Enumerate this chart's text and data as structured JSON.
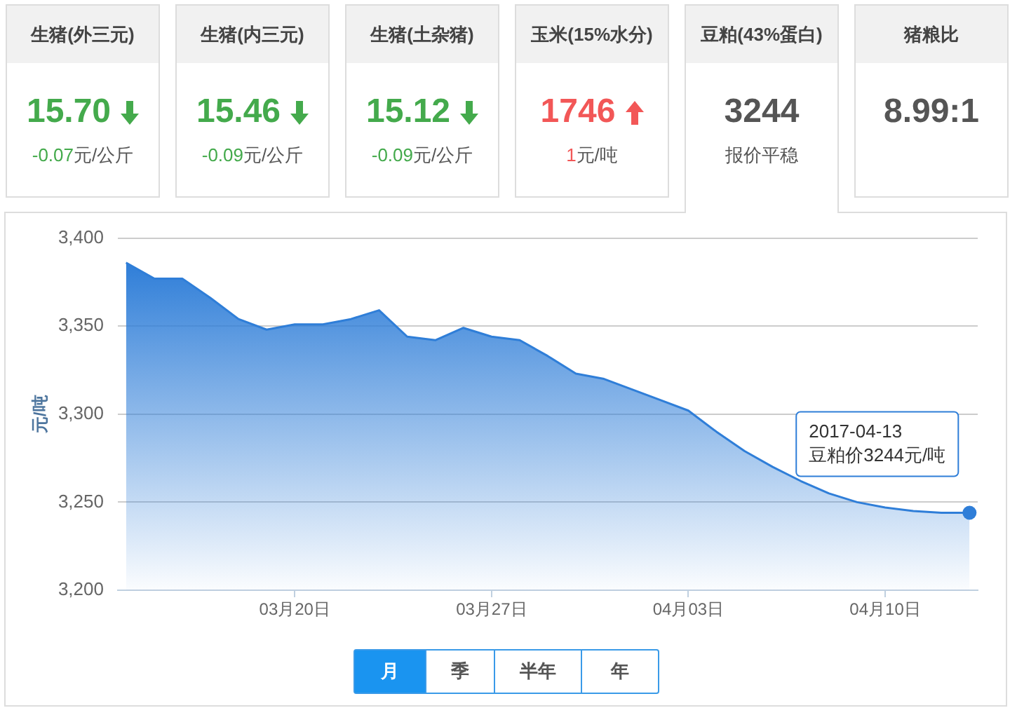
{
  "chart_data": [
    {
      "type": "other",
      "title": "生猪(外三元)",
      "annotations": [
        "15.70",
        "-0.07元/公斤"
      ],
      "color": "#44aa4c"
    },
    {
      "type": "other",
      "title": "生猪(内三元)",
      "annotations": [
        "15.46",
        "-0.09元/公斤"
      ],
      "color": "#44aa4c"
    },
    {
      "type": "other",
      "title": "生猪(土杂猪)",
      "annotations": [
        "15.12",
        "-0.09元/公斤"
      ],
      "color": "#44aa4c"
    },
    {
      "type": "other",
      "title": "玉米(15%水分)",
      "annotations": [
        "1746",
        "1元/吨"
      ],
      "color": "#f25757"
    },
    {
      "type": "other",
      "title": "豆粕(43%蛋白)",
      "annotations": [
        "3244",
        "报价平稳"
      ],
      "color": "#555555"
    },
    {
      "type": "other",
      "title": "猪粮比",
      "annotations": [
        "8.99:1"
      ],
      "color": "#555555"
    },
    {
      "type": "area",
      "x": [
        "2017-03-14",
        "2017-03-15",
        "2017-03-16",
        "2017-03-17",
        "2017-03-18",
        "2017-03-19",
        "2017-03-20",
        "2017-03-21",
        "2017-03-22",
        "2017-03-23",
        "2017-03-24",
        "2017-03-25",
        "2017-03-26",
        "2017-03-27",
        "2017-03-28",
        "2017-03-29",
        "2017-03-30",
        "2017-03-31",
        "2017-04-01",
        "2017-04-02",
        "2017-04-03",
        "2017-04-04",
        "2017-04-05",
        "2017-04-06",
        "2017-04-07",
        "2017-04-08",
        "2017-04-09",
        "2017-04-10",
        "2017-04-11",
        "2017-04-12",
        "2017-04-13"
      ],
      "values": [
        3386,
        3377,
        3377,
        3366,
        3354,
        3348,
        3351,
        3351,
        3354,
        3359,
        3344,
        3342,
        3349,
        3344,
        3342,
        3333,
        3323,
        3320,
        3314,
        3308,
        3302,
        3290,
        3279,
        3270,
        3262,
        3255,
        3250,
        3247,
        3245,
        3244,
        3244
      ],
      "color": "#2f7ed8",
      "ylabel": "元/吨",
      "ylim": [
        3200,
        3400
      ],
      "yticks": [
        {
          "value": 3200,
          "label": "3,200"
        },
        {
          "value": 3250,
          "label": "3,250"
        },
        {
          "value": 3300,
          "label": "3,300"
        },
        {
          "value": 3350,
          "label": "3,350"
        },
        {
          "value": 3400,
          "label": "3,400"
        }
      ],
      "xlim": [
        "2017-03-13T17:00",
        "2017-04-13T07:00"
      ],
      "xticks": [
        {
          "value": "2017-03-20",
          "label": "03月20日"
        },
        {
          "value": "2017-03-27",
          "label": "03月27日"
        },
        {
          "value": "2017-04-03",
          "label": "04月03日"
        },
        {
          "value": "2017-04-10",
          "label": "04月10日"
        }
      ],
      "grid": "y",
      "annotations": [
        {
          "text": "2017-04-13\n豆粕价3244元/吨",
          "x": "2017-04-13",
          "y": 3244
        }
      ]
    },
    {
      "type": "other",
      "annotations": [
        "月",
        "季",
        "半年",
        "年"
      ]
    }
  ]
}
